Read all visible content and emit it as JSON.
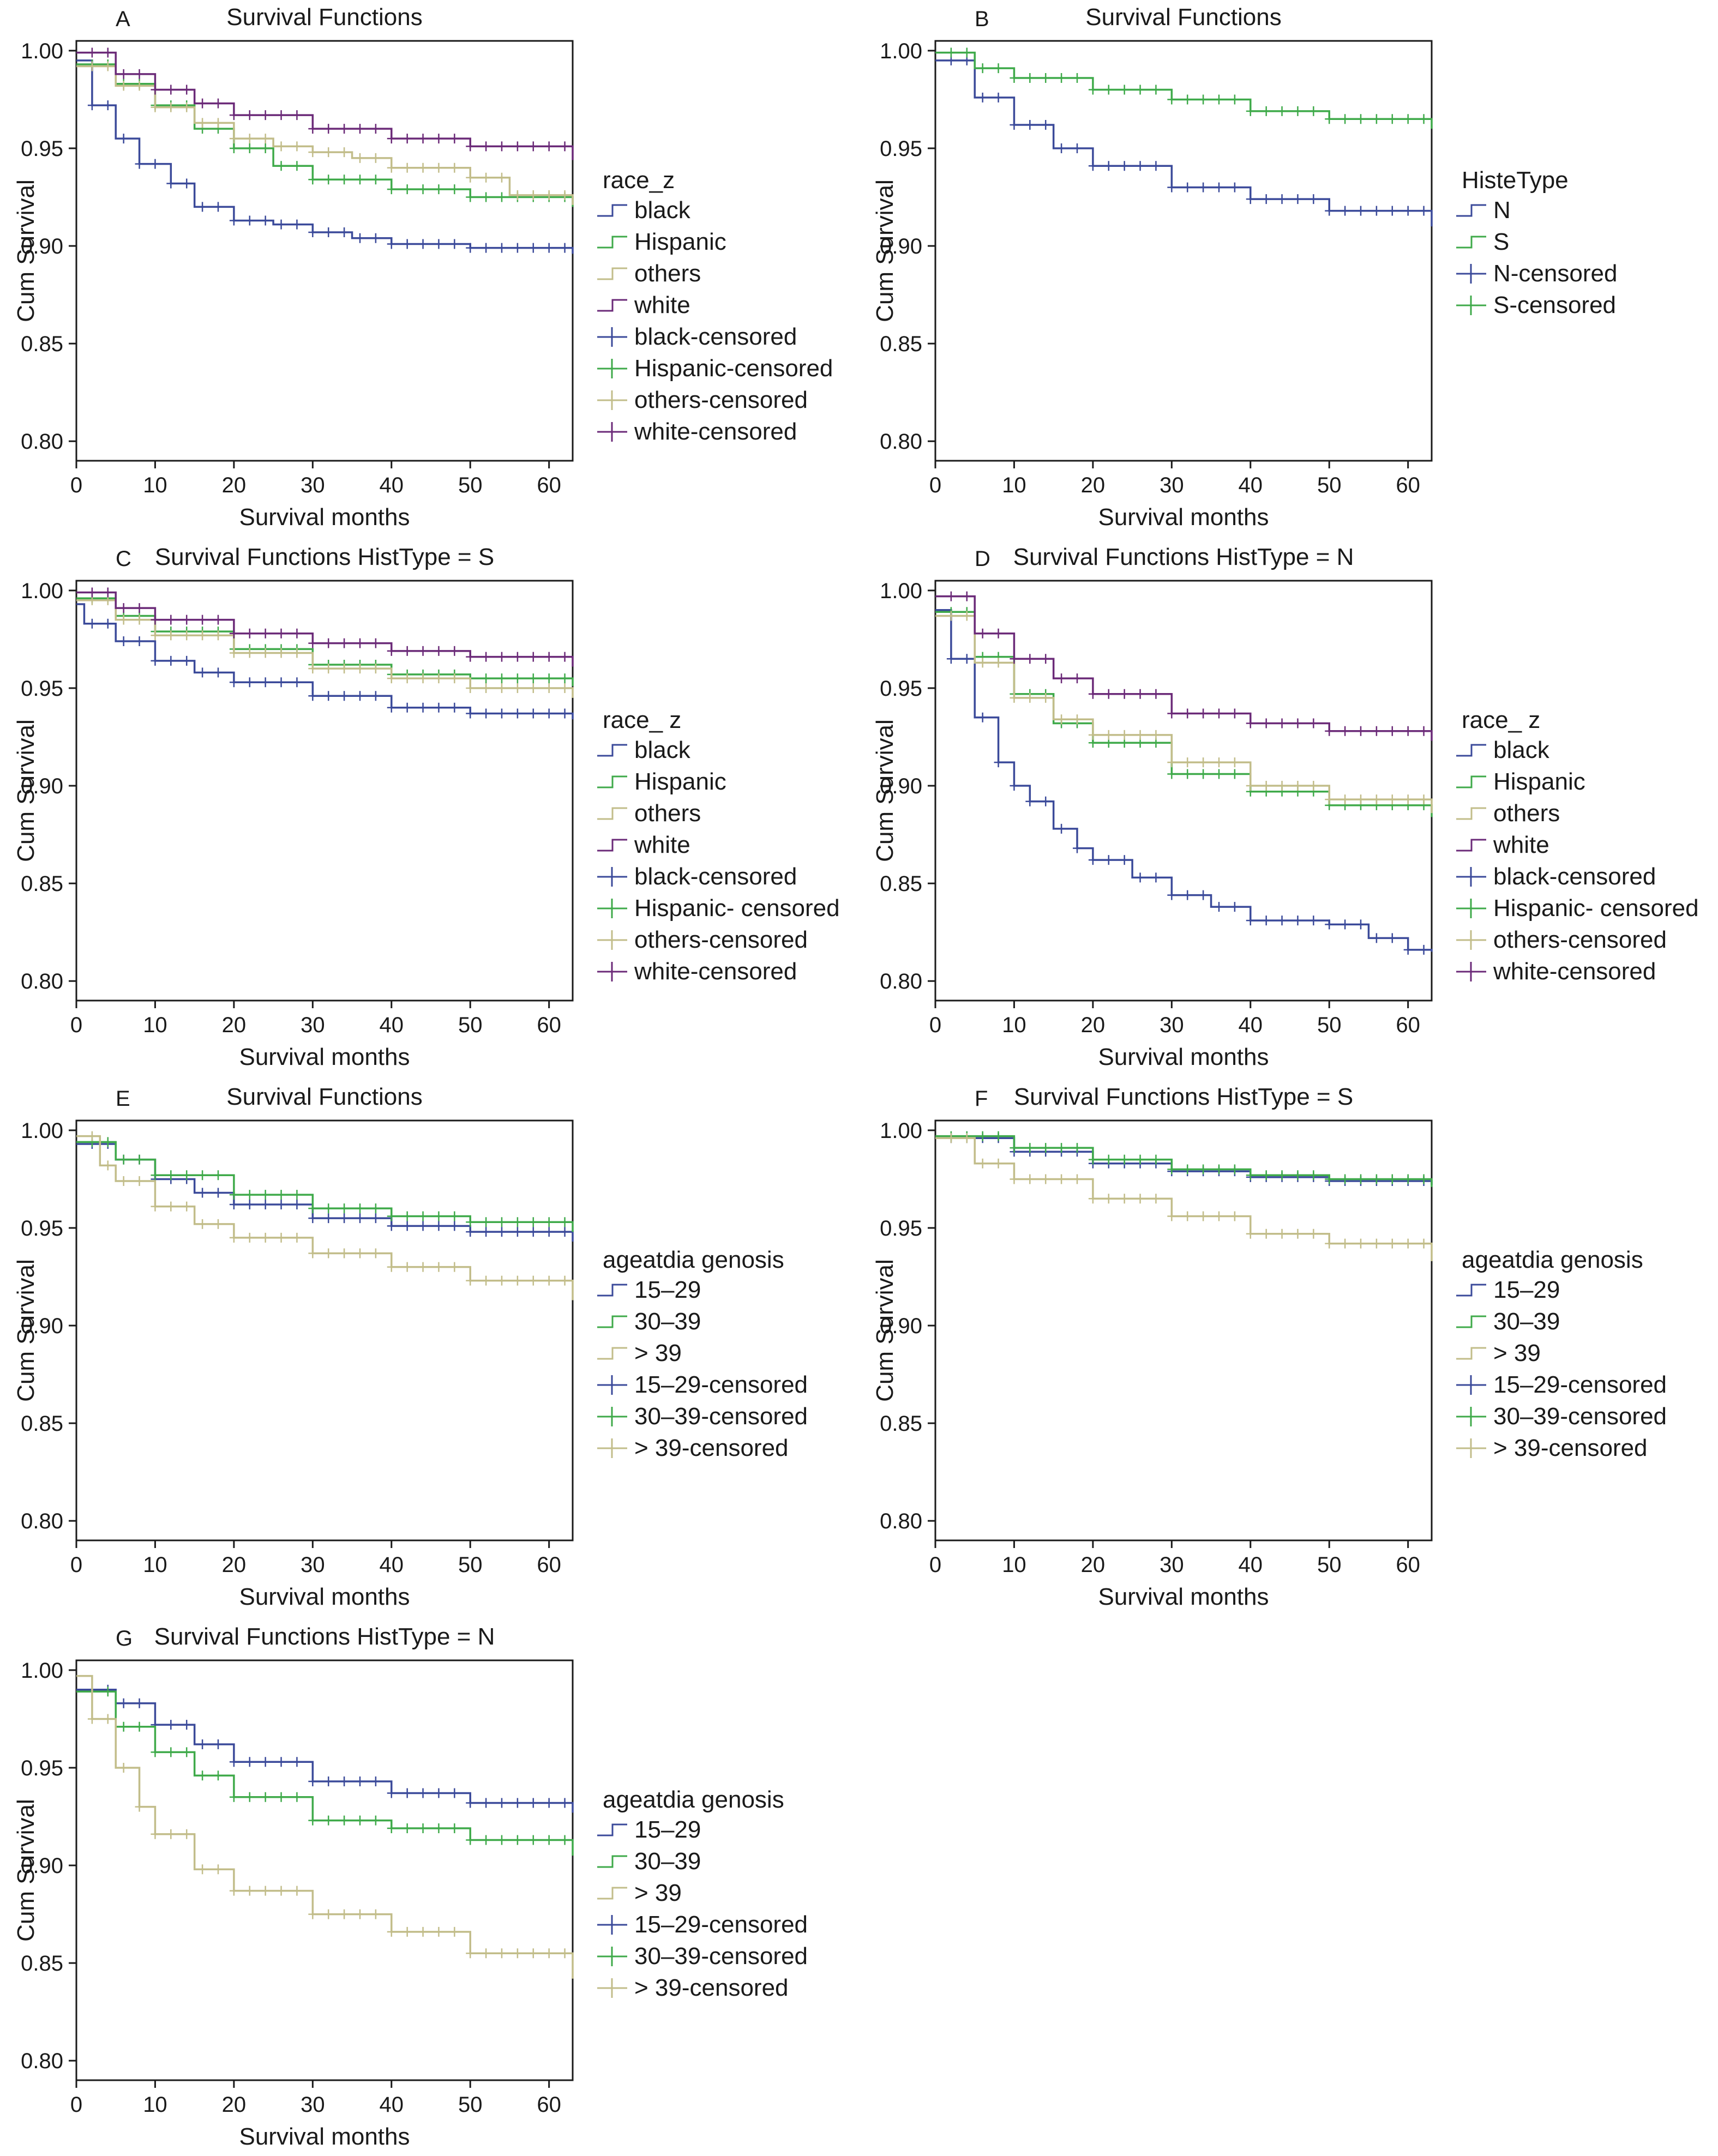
{
  "figure": {
    "colors": {
      "blue": "#3b4a9a",
      "green": "#3faa4a",
      "tan": "#c2bd8a",
      "purple": "#6b2a78",
      "axis": "#1a1a1a"
    },
    "legend_glyphs": {
      "step": "step-line-icon",
      "censored": "plus-marker-icon"
    }
  },
  "chart_data": [
    {
      "panel": "A",
      "type": "line",
      "title": "Survival Functions",
      "xlabel": "Survival months",
      "ylabel": "Cum Survival",
      "xlim": [
        0,
        63
      ],
      "ylim": [
        0.79,
        1.005
      ],
      "xticks": [
        "0",
        "10",
        "20",
        "30",
        "40",
        "50",
        "60"
      ],
      "yticks": [
        "0.80",
        "0.85",
        "0.90",
        "0.95",
        "1.00"
      ],
      "legend_title": "race_z",
      "legend": [
        "black",
        "Hispanic",
        "others",
        "white",
        "black-censored",
        "Hispanic-censored",
        "others-censored",
        "white-censored"
      ],
      "legend_colors": [
        "blue",
        "green",
        "tan",
        "purple",
        "blue",
        "green",
        "tan",
        "purple"
      ],
      "series": [
        {
          "name": "black",
          "color": "blue",
          "x": [
            0,
            2,
            5,
            8,
            12,
            15,
            20,
            25,
            30,
            35,
            40,
            50,
            63
          ],
          "y": [
            0.995,
            0.972,
            0.955,
            0.942,
            0.932,
            0.92,
            0.913,
            0.911,
            0.907,
            0.904,
            0.901,
            0.899,
            0.896
          ]
        },
        {
          "name": "Hispanic",
          "color": "green",
          "x": [
            0,
            5,
            10,
            15,
            20,
            25,
            30,
            40,
            50,
            63
          ],
          "y": [
            0.993,
            0.983,
            0.972,
            0.96,
            0.95,
            0.941,
            0.934,
            0.929,
            0.925,
            0.92
          ]
        },
        {
          "name": "others",
          "color": "tan",
          "x": [
            0,
            5,
            10,
            15,
            20,
            25,
            30,
            35,
            40,
            50,
            55,
            63
          ],
          "y": [
            0.992,
            0.982,
            0.971,
            0.963,
            0.955,
            0.951,
            0.948,
            0.945,
            0.94,
            0.935,
            0.926,
            0.921
          ]
        },
        {
          "name": "white",
          "color": "purple",
          "x": [
            0,
            5,
            10,
            15,
            20,
            30,
            40,
            50,
            63
          ],
          "y": [
            0.999,
            0.988,
            0.98,
            0.973,
            0.967,
            0.96,
            0.955,
            0.951,
            0.944
          ]
        }
      ]
    },
    {
      "panel": "B",
      "type": "line",
      "title": "Survival Functions",
      "xlabel": "Survival months",
      "ylabel": "Cum Survival",
      "xlim": [
        0,
        63
      ],
      "ylim": [
        0.79,
        1.005
      ],
      "xticks": [
        "0",
        "10",
        "20",
        "30",
        "40",
        "50",
        "60"
      ],
      "yticks": [
        "0.80",
        "0.85",
        "0.90",
        "0.95",
        "1.00"
      ],
      "legend_title": "HisteType",
      "legend": [
        "N",
        "S",
        "N-censored",
        "S-censored"
      ],
      "legend_colors": [
        "blue",
        "green",
        "blue",
        "green"
      ],
      "series": [
        {
          "name": "N",
          "color": "blue",
          "x": [
            0,
            5,
            10,
            15,
            20,
            30,
            40,
            50,
            63
          ],
          "y": [
            0.995,
            0.976,
            0.962,
            0.95,
            0.941,
            0.93,
            0.924,
            0.918,
            0.91
          ]
        },
        {
          "name": "S",
          "color": "green",
          "x": [
            0,
            5,
            10,
            20,
            30,
            40,
            50,
            63
          ],
          "y": [
            0.999,
            0.991,
            0.986,
            0.98,
            0.975,
            0.969,
            0.965,
            0.96
          ]
        }
      ]
    },
    {
      "panel": "C",
      "type": "line",
      "title": "Survival Functions HistType = S",
      "xlabel": "Survival months",
      "ylabel": "Cum Survival",
      "xlim": [
        0,
        63
      ],
      "ylim": [
        0.79,
        1.005
      ],
      "xticks": [
        "0",
        "10",
        "20",
        "30",
        "40",
        "50",
        "60"
      ],
      "yticks": [
        "0.80",
        "0.85",
        "0.90",
        "0.95",
        "1.00"
      ],
      "legend_title": "race_ z",
      "legend": [
        "black",
        "Hispanic",
        "others",
        "white",
        "black-censored",
        "Hispanic- censored",
        "others-censored",
        "white-censored"
      ],
      "legend_colors": [
        "blue",
        "green",
        "tan",
        "purple",
        "blue",
        "green",
        "tan",
        "purple"
      ],
      "series": [
        {
          "name": "black",
          "color": "blue",
          "x": [
            0,
            1,
            5,
            10,
            15,
            20,
            30,
            40,
            50,
            63
          ],
          "y": [
            0.993,
            0.983,
            0.974,
            0.964,
            0.958,
            0.953,
            0.946,
            0.94,
            0.937,
            0.934
          ]
        },
        {
          "name": "Hispanic",
          "color": "green",
          "x": [
            0,
            5,
            10,
            20,
            30,
            40,
            50,
            63
          ],
          "y": [
            0.996,
            0.987,
            0.979,
            0.97,
            0.962,
            0.957,
            0.955,
            0.951
          ]
        },
        {
          "name": "others",
          "color": "tan",
          "x": [
            0,
            5,
            10,
            20,
            30,
            40,
            50,
            63
          ],
          "y": [
            0.995,
            0.985,
            0.977,
            0.968,
            0.96,
            0.955,
            0.95,
            0.945
          ]
        },
        {
          "name": "white",
          "color": "purple",
          "x": [
            0,
            5,
            10,
            20,
            30,
            40,
            50,
            63
          ],
          "y": [
            0.999,
            0.991,
            0.985,
            0.978,
            0.973,
            0.969,
            0.966,
            0.961
          ]
        }
      ]
    },
    {
      "panel": "D",
      "type": "line",
      "title": "Survival Functions HistType = N",
      "xlabel": "Survival months",
      "ylabel": "Cum Survival",
      "xlim": [
        0,
        63
      ],
      "ylim": [
        0.79,
        1.005
      ],
      "xticks": [
        "0",
        "10",
        "20",
        "30",
        "40",
        "50",
        "60"
      ],
      "yticks": [
        "0.80",
        "0.85",
        "0.90",
        "0.95",
        "1.00"
      ],
      "legend_title": "race_ z",
      "legend": [
        "black",
        "Hispanic",
        "others",
        "white",
        "black-censored",
        "Hispanic- censored",
        "others-censored",
        "white-censored"
      ],
      "legend_colors": [
        "blue",
        "green",
        "tan",
        "purple",
        "blue",
        "green",
        "tan",
        "purple"
      ],
      "series": [
        {
          "name": "black",
          "color": "blue",
          "x": [
            0,
            2,
            5,
            8,
            10,
            12,
            15,
            18,
            20,
            25,
            30,
            35,
            40,
            50,
            55,
            60,
            63
          ],
          "y": [
            0.99,
            0.965,
            0.935,
            0.912,
            0.9,
            0.892,
            0.878,
            0.868,
            0.862,
            0.853,
            0.844,
            0.838,
            0.831,
            0.829,
            0.822,
            0.816,
            0.815
          ]
        },
        {
          "name": "Hispanic",
          "color": "green",
          "x": [
            0,
            5,
            10,
            15,
            20,
            30,
            40,
            50,
            63
          ],
          "y": [
            0.989,
            0.966,
            0.947,
            0.932,
            0.922,
            0.906,
            0.897,
            0.89,
            0.884
          ]
        },
        {
          "name": "others",
          "color": "tan",
          "x": [
            0,
            5,
            10,
            15,
            20,
            30,
            40,
            50,
            63
          ],
          "y": [
            0.987,
            0.963,
            0.945,
            0.934,
            0.926,
            0.912,
            0.9,
            0.893,
            0.886
          ]
        },
        {
          "name": "white",
          "color": "purple",
          "x": [
            0,
            5,
            10,
            15,
            20,
            30,
            40,
            50,
            63
          ],
          "y": [
            0.997,
            0.978,
            0.965,
            0.955,
            0.947,
            0.937,
            0.932,
            0.928,
            0.923
          ]
        }
      ]
    },
    {
      "panel": "E",
      "type": "line",
      "title": "Survival Functions",
      "xlabel": "Survival months",
      "ylabel": "Cum Survival",
      "xlim": [
        0,
        63
      ],
      "ylim": [
        0.79,
        1.005
      ],
      "xticks": [
        "0",
        "10",
        "20",
        "30",
        "40",
        "50",
        "60"
      ],
      "yticks": [
        "0.80",
        "0.85",
        "0.90",
        "0.95",
        "1.00"
      ],
      "legend_title": "ageatdia genosis",
      "legend": [
        "15–29",
        "30–39",
        "> 39",
        "15–29-censored",
        "30–39-censored",
        "> 39-censored"
      ],
      "legend_colors": [
        "blue",
        "green",
        "tan",
        "blue",
        "green",
        "tan"
      ],
      "series": [
        {
          "name": "15–29",
          "color": "blue",
          "x": [
            0,
            5,
            10,
            15,
            20,
            30,
            40,
            50,
            63
          ],
          "y": [
            0.993,
            0.985,
            0.975,
            0.968,
            0.962,
            0.955,
            0.951,
            0.948,
            0.943
          ]
        },
        {
          "name": "30–39",
          "color": "green",
          "x": [
            0,
            5,
            10,
            20,
            30,
            40,
            50,
            63
          ],
          "y": [
            0.994,
            0.985,
            0.977,
            0.967,
            0.96,
            0.956,
            0.953,
            0.948
          ]
        },
        {
          "name": "> 39",
          "color": "tan",
          "x": [
            0,
            3,
            5,
            10,
            15,
            20,
            30,
            40,
            50,
            63
          ],
          "y": [
            0.997,
            0.982,
            0.974,
            0.961,
            0.952,
            0.945,
            0.937,
            0.93,
            0.923,
            0.913
          ]
        }
      ]
    },
    {
      "panel": "F",
      "type": "line",
      "title": "Survival Functions HistType = S",
      "xlabel": "Survival months",
      "ylabel": "Cum Survival",
      "xlim": [
        0,
        63
      ],
      "ylim": [
        0.79,
        1.005
      ],
      "xticks": [
        "0",
        "10",
        "20",
        "30",
        "40",
        "50",
        "60"
      ],
      "yticks": [
        "0.80",
        "0.85",
        "0.90",
        "0.95",
        "1.00"
      ],
      "legend_title": "ageatdia genosis",
      "legend": [
        "15–29",
        "30–39",
        "> 39",
        "15–29-censored",
        "30–39-censored",
        "> 39-censored"
      ],
      "legend_colors": [
        "blue",
        "green",
        "tan",
        "blue",
        "green",
        "tan"
      ],
      "series": [
        {
          "name": "15–29",
          "color": "blue",
          "x": [
            0,
            10,
            20,
            30,
            40,
            50,
            63
          ],
          "y": [
            0.996,
            0.989,
            0.983,
            0.979,
            0.976,
            0.974,
            0.972
          ]
        },
        {
          "name": "30–39",
          "color": "green",
          "x": [
            0,
            10,
            20,
            30,
            40,
            50,
            63
          ],
          "y": [
            0.997,
            0.991,
            0.985,
            0.98,
            0.977,
            0.975,
            0.971
          ]
        },
        {
          "name": "> 39",
          "color": "tan",
          "x": [
            0,
            5,
            10,
            20,
            30,
            40,
            50,
            63
          ],
          "y": [
            0.996,
            0.983,
            0.975,
            0.965,
            0.956,
            0.947,
            0.942,
            0.933
          ]
        }
      ]
    },
    {
      "panel": "G",
      "type": "line",
      "title": "Survival Functions HistType = N",
      "xlabel": "Survival months",
      "ylabel": "Cum Survival",
      "xlim": [
        0,
        63
      ],
      "ylim": [
        0.79,
        1.005
      ],
      "xticks": [
        "0",
        "10",
        "20",
        "30",
        "40",
        "50",
        "60"
      ],
      "yticks": [
        "0.80",
        "0.85",
        "0.90",
        "0.95",
        "1.00"
      ],
      "legend_title": "ageatdia genosis",
      "legend": [
        "15–29",
        "30–39",
        "> 39",
        "15–29-censored",
        "30–39-censored",
        "> 39-censored"
      ],
      "legend_colors": [
        "blue",
        "green",
        "tan",
        "blue",
        "green",
        "tan"
      ],
      "series": [
        {
          "name": "15–29",
          "color": "blue",
          "x": [
            0,
            5,
            10,
            15,
            20,
            30,
            40,
            50,
            63
          ],
          "y": [
            0.99,
            0.983,
            0.972,
            0.962,
            0.953,
            0.943,
            0.937,
            0.932,
            0.927
          ]
        },
        {
          "name": "30–39",
          "color": "green",
          "x": [
            0,
            5,
            10,
            15,
            20,
            30,
            40,
            50,
            63
          ],
          "y": [
            0.989,
            0.971,
            0.958,
            0.946,
            0.935,
            0.923,
            0.919,
            0.913,
            0.905
          ]
        },
        {
          "name": "> 39",
          "color": "tan",
          "x": [
            0,
            2,
            5,
            8,
            10,
            15,
            20,
            30,
            40,
            50,
            63
          ],
          "y": [
            0.997,
            0.975,
            0.95,
            0.93,
            0.916,
            0.898,
            0.887,
            0.875,
            0.866,
            0.855,
            0.842
          ]
        }
      ]
    }
  ]
}
